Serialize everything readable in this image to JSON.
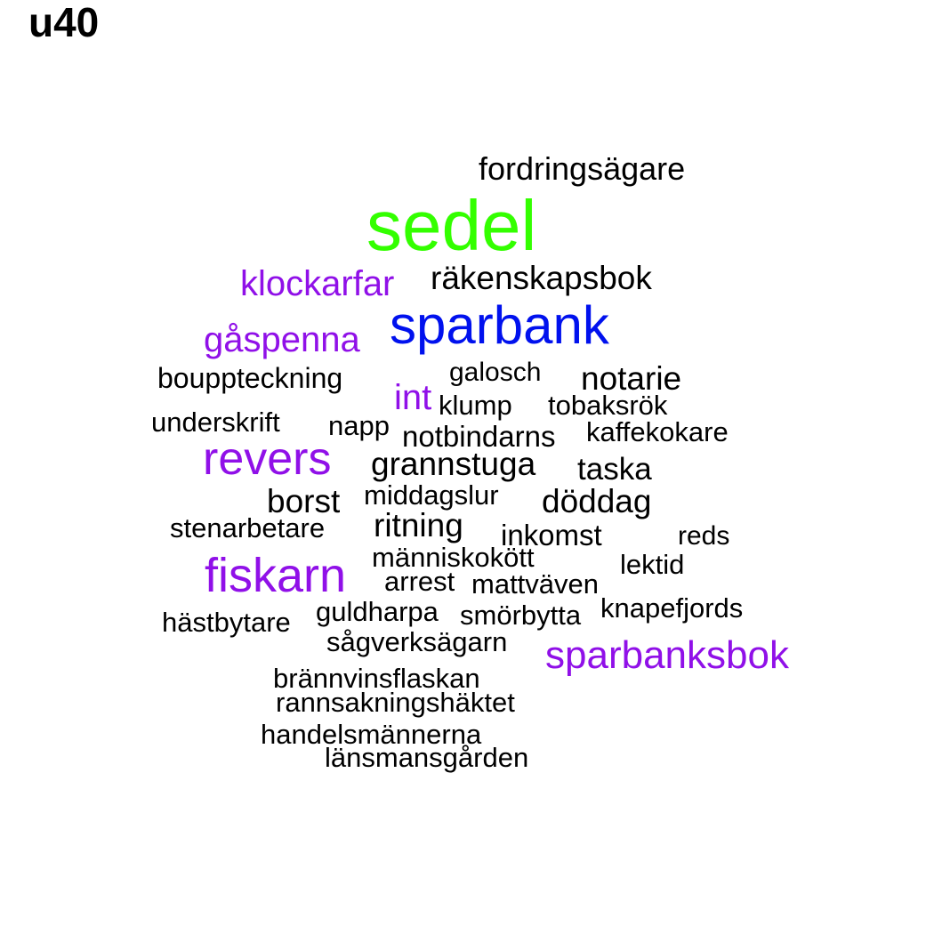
{
  "title": "u40",
  "colors": {
    "green": "#33ff00",
    "blue": "#0011ee",
    "purple": "#9010e8",
    "black": "#000000"
  },
  "words": [
    {
      "text": "fordringsägare",
      "color": "black",
      "weight": 1
    },
    {
      "text": "sedel",
      "color": "green",
      "weight": 5
    },
    {
      "text": "klockarfar",
      "color": "purple",
      "weight": 2
    },
    {
      "text": "räkenskapsbok",
      "color": "black",
      "weight": 1
    },
    {
      "text": "sparbank",
      "color": "blue",
      "weight": 4
    },
    {
      "text": "gåspenna",
      "color": "purple",
      "weight": 2
    },
    {
      "text": "bouppteckning",
      "color": "black",
      "weight": 1
    },
    {
      "text": "galosch",
      "color": "black",
      "weight": 1
    },
    {
      "text": "notarie",
      "color": "black",
      "weight": 1
    },
    {
      "text": "int",
      "color": "purple",
      "weight": 2
    },
    {
      "text": "klump",
      "color": "black",
      "weight": 1
    },
    {
      "text": "tobaksrök",
      "color": "black",
      "weight": 1
    },
    {
      "text": "underskrift",
      "color": "black",
      "weight": 1
    },
    {
      "text": "napp",
      "color": "black",
      "weight": 1
    },
    {
      "text": "notbindarns",
      "color": "black",
      "weight": 1
    },
    {
      "text": "kaffekokare",
      "color": "black",
      "weight": 1
    },
    {
      "text": "revers",
      "color": "purple",
      "weight": 3
    },
    {
      "text": "grannstuga",
      "color": "black",
      "weight": 1
    },
    {
      "text": "taska",
      "color": "black",
      "weight": 1
    },
    {
      "text": "borst",
      "color": "black",
      "weight": 1
    },
    {
      "text": "middagslur",
      "color": "black",
      "weight": 1
    },
    {
      "text": "döddag",
      "color": "black",
      "weight": 1
    },
    {
      "text": "stenarbetare",
      "color": "black",
      "weight": 1
    },
    {
      "text": "ritning",
      "color": "black",
      "weight": 1
    },
    {
      "text": "inkomst",
      "color": "black",
      "weight": 1
    },
    {
      "text": "reds",
      "color": "black",
      "weight": 1
    },
    {
      "text": "människokött",
      "color": "black",
      "weight": 1
    },
    {
      "text": "lektid",
      "color": "black",
      "weight": 1
    },
    {
      "text": "fiskarn",
      "color": "purple",
      "weight": 3
    },
    {
      "text": "arrest",
      "color": "black",
      "weight": 1
    },
    {
      "text": "mattväven",
      "color": "black",
      "weight": 1
    },
    {
      "text": "knapefjords",
      "color": "black",
      "weight": 1
    },
    {
      "text": "guldharpa",
      "color": "black",
      "weight": 1
    },
    {
      "text": "smörbytta",
      "color": "black",
      "weight": 1
    },
    {
      "text": "hästbytare",
      "color": "black",
      "weight": 1
    },
    {
      "text": "sågverksägarn",
      "color": "black",
      "weight": 1
    },
    {
      "text": "sparbanksbok",
      "color": "purple",
      "weight": 2
    },
    {
      "text": "brännvinsflaskan",
      "color": "black",
      "weight": 1
    },
    {
      "text": "rannsakningshäktet",
      "color": "black",
      "weight": 1
    },
    {
      "text": "handelsmännerna",
      "color": "black",
      "weight": 1
    },
    {
      "text": "länsmansgården",
      "color": "black",
      "weight": 1
    }
  ]
}
